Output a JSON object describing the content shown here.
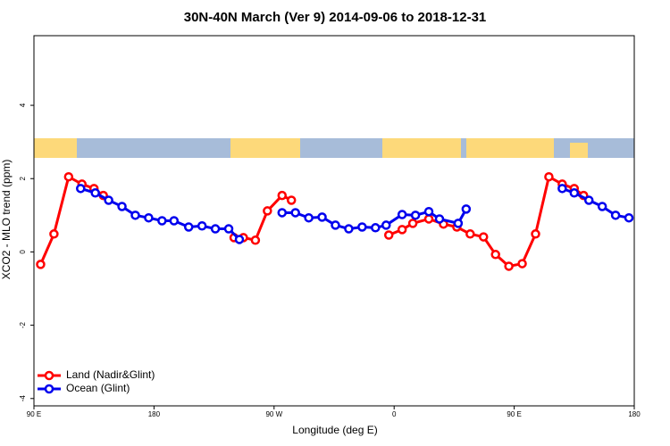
{
  "chart_data": {
    "type": "line",
    "title": "30N-40N March (Ver 9)   2014-09-06 to 2018-12-31",
    "x_label": "Longitude (deg E)",
    "y_label": "XCO2 - MLO trend (ppm)",
    "xlim": [
      90,
      540
    ],
    "ylim": [
      -4.2,
      5.9
    ],
    "xticks": [
      {
        "value": 90,
        "label": "90 E"
      },
      180,
      {
        "value": 270,
        "label": "90 W"
      },
      {
        "value": 360,
        "label": "0"
      },
      {
        "value": 450,
        "label": "90 E"
      },
      {
        "value": 540,
        "label": "180"
      }
    ],
    "yticks": [
      -4,
      -2,
      0,
      2,
      4
    ],
    "legend": "bottom-left",
    "series": [
      {
        "name": "Land (Nadir&Glint)",
        "color": "#ff0000",
        "x": [
          95,
          105,
          116,
          126,
          135,
          142,
          null,
          240,
          247,
          256,
          265,
          276,
          283,
          null,
          356,
          366,
          374,
          386,
          397,
          407,
          417,
          427,
          436,
          446,
          456,
          466,
          476,
          486,
          495,
          502
        ],
        "values": [
          -0.34,
          0.49,
          2.05,
          1.85,
          1.73,
          1.54,
          null,
          0.39,
          0.39,
          0.32,
          1.12,
          1.54,
          1.41,
          null,
          0.46,
          0.61,
          0.78,
          0.9,
          0.76,
          0.68,
          0.49,
          0.41,
          -0.07,
          -0.39,
          -0.32,
          0.49,
          2.05,
          1.85,
          1.73,
          1.54
        ]
      },
      {
        "name": "Ocean (Glint)",
        "color": "#0000ee",
        "x": [
          125,
          136,
          146,
          156,
          166,
          176,
          186,
          195,
          206,
          216,
          226,
          236,
          244,
          null,
          276,
          286,
          296,
          306,
          316,
          326,
          336,
          346,
          354,
          366,
          376,
          386,
          394,
          408,
          414,
          null,
          486,
          495,
          506,
          516,
          526,
          536
        ],
        "values": [
          1.73,
          1.61,
          1.41,
          1.24,
          1.0,
          0.93,
          0.85,
          0.85,
          0.68,
          0.71,
          0.63,
          0.63,
          0.34,
          null,
          1.07,
          1.07,
          0.93,
          0.95,
          0.73,
          0.63,
          0.68,
          0.66,
          0.73,
          1.02,
          1.0,
          1.1,
          0.9,
          0.78,
          1.17,
          null,
          1.73,
          1.61,
          1.41,
          1.24,
          1.0,
          0.93
        ]
      }
    ]
  }
}
